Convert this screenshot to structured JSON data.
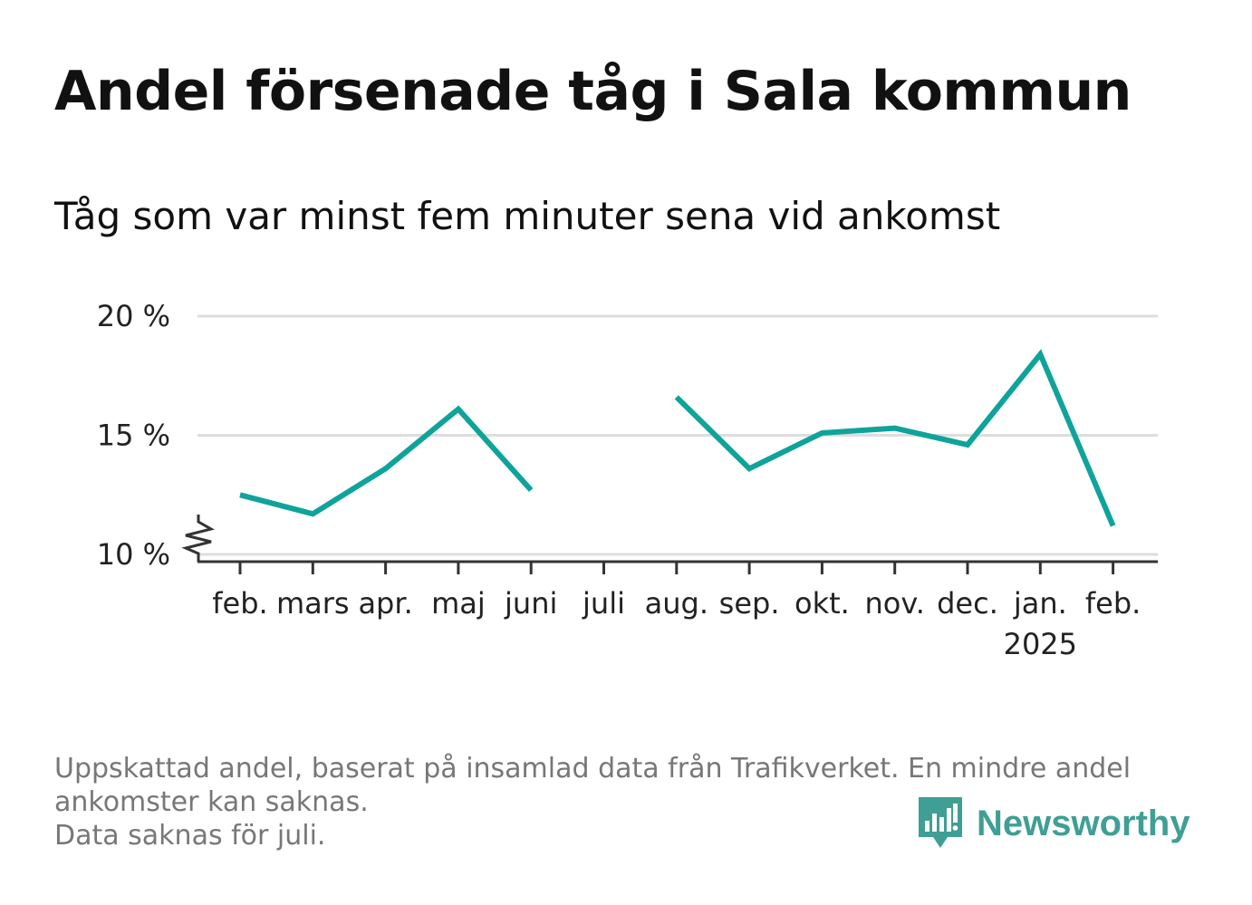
{
  "header": {
    "title": "Andel försenade tåg i Sala kommun",
    "subtitle": "Tåg som var minst fem minuter sena vid ankomst"
  },
  "chart_data": {
    "type": "line",
    "title": "Andel försenade tåg i Sala kommun",
    "subtitle": "Tåg som var minst fem minuter sena vid ankomst",
    "xlabel": "",
    "ylabel": "",
    "categories": [
      "feb.",
      "mars",
      "apr.",
      "maj",
      "juni",
      "juli",
      "aug.",
      "sep.",
      "okt.",
      "nov.",
      "dec.",
      "jan.",
      "feb."
    ],
    "category_sublabels": [
      "",
      "",
      "",
      "",
      "",
      "",
      "",
      "",
      "",
      "",
      "",
      "2025",
      ""
    ],
    "series": [
      {
        "values": [
          12.5,
          11.7,
          13.6,
          16.1,
          12.7,
          null,
          16.6,
          13.6,
          15.1,
          15.3,
          14.6,
          18.4,
          11.2
        ],
        "color": "#0ea39b"
      }
    ],
    "y_ticks": [
      {
        "value": 10,
        "label": "10 %"
      },
      {
        "value": 15,
        "label": "15 %"
      },
      {
        "value": 20,
        "label": "20 %"
      }
    ],
    "ylim": [
      10,
      20
    ],
    "y_axis_break": true,
    "grid": true,
    "gridline_color": "#dddddd",
    "missing": [
      "juli"
    ]
  },
  "footnote": {
    "lines": [
      "Uppskattad andel, baserat på insamlad data från Trafikverket. En mindre andel",
      "ankomster kan saknas.",
      "Data saknas för juli."
    ]
  },
  "brand": {
    "name": "Newsworthy",
    "icon": "bar-chart-speech-bubble-icon",
    "color": "#3f9f94"
  }
}
